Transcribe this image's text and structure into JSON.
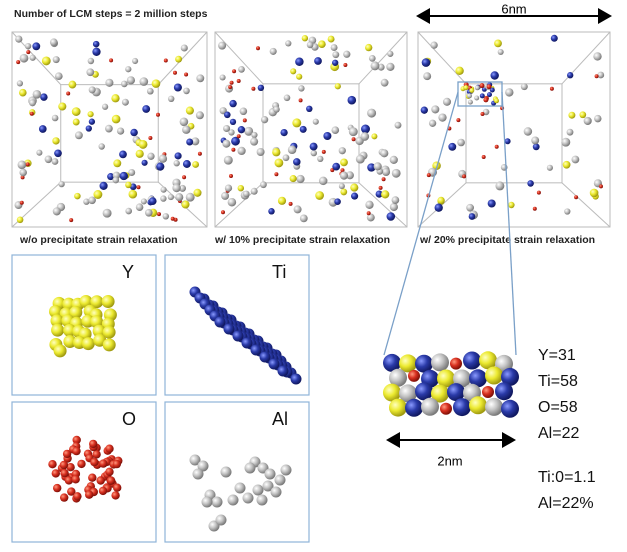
{
  "header": {
    "title": "Number of LCM steps = 2 million steps"
  },
  "simulations": [
    {
      "caption": "w/o precipitate strain relaxation"
    },
    {
      "caption": "w/ 10% precipitate strain relaxation"
    },
    {
      "caption": "w/ 20% precipitate strain relaxation"
    }
  ],
  "box_size": "6nm",
  "elements": [
    {
      "label": "Y"
    },
    {
      "label": "Ti"
    },
    {
      "label": "O"
    },
    {
      "label": "Al"
    }
  ],
  "zoom": {
    "size": "2nm"
  },
  "composition": [
    "Y=31",
    "Ti=58",
    "O=58",
    "Al=22",
    "Ti:0=1.1",
    "Al=22%"
  ]
}
